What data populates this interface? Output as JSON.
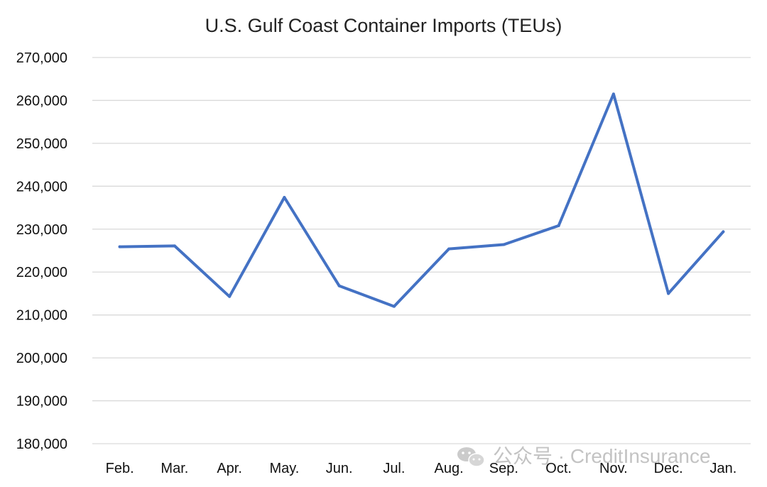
{
  "chart_data": {
    "type": "line",
    "title": "U.S. Gulf Coast Container Imports (TEUs)",
    "xlabel": "",
    "ylabel": "",
    "categories": [
      "Feb.",
      "Mar.",
      "Apr.",
      "May.",
      "Jun.",
      "Jul.",
      "Aug.",
      "Sep.",
      "Oct.",
      "Nov.",
      "Dec.",
      "Jan."
    ],
    "series": [
      {
        "values": [
          225900,
          226100,
          214300,
          237400,
          216800,
          212000,
          225400,
          226400,
          230800,
          261500,
          215000,
          229400
        ]
      }
    ],
    "ylim": [
      180000,
      270000
    ],
    "y_ticks": [
      180000,
      190000,
      200000,
      210000,
      220000,
      230000,
      240000,
      250000,
      260000,
      270000
    ],
    "y_tick_labels": [
      "180,000",
      "190,000",
      "200,000",
      "210,000",
      "220,000",
      "230,000",
      "240,000",
      "250,000",
      "260,000",
      "270,000"
    ],
    "grid": "horizontal",
    "legend": "none",
    "colors": {
      "line": "#4472c4",
      "grid": "#d9d9d9",
      "text": "#111111"
    }
  },
  "watermark": {
    "text": "公众号 · CreditInsurance",
    "icon": "wechat-icon"
  }
}
